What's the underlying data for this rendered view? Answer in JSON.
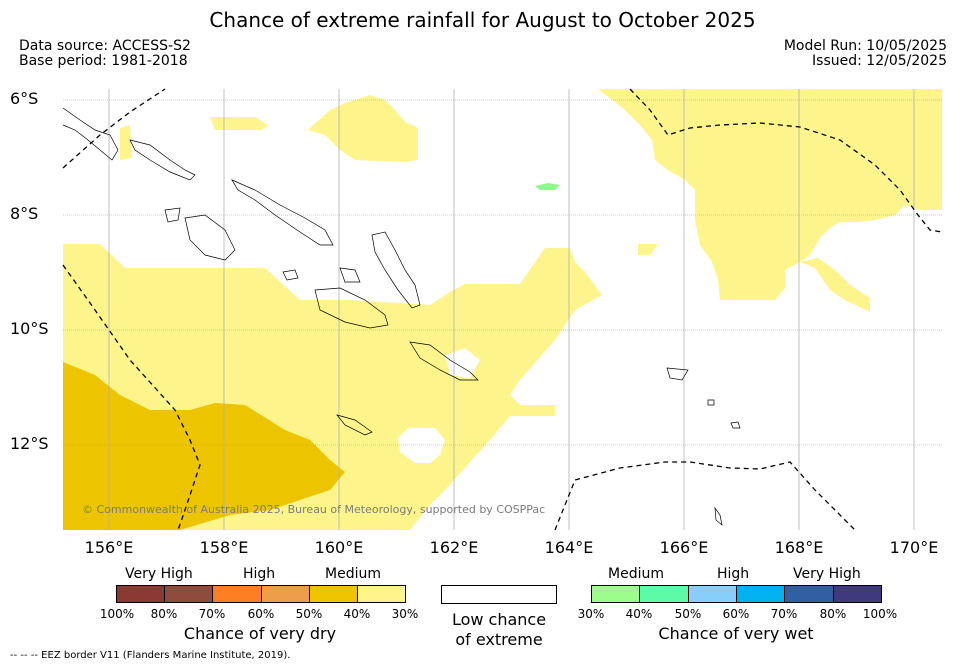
{
  "title": "Chance of extreme rainfall for August to October 2025",
  "meta": {
    "data_source": "Data source: ACCESS-S2",
    "base_period": "Base period: 1981-2018",
    "model_run": "Model Run: 10/05/2025",
    "issued": "Issued: 12/05/2025"
  },
  "map": {
    "lat_labels": [
      "6°S",
      "8°S",
      "10°S",
      "12°S"
    ],
    "lon_labels": [
      "156°E",
      "158°E",
      "160°E",
      "162°E",
      "164°E",
      "166°E",
      "168°E",
      "170°E"
    ],
    "copyright": "© Commonwealth of Australia 2025, Bureau of Meteorology, supported by COSPPac",
    "colors": {
      "dry_medium": "#fdf58b",
      "dry_high": "#edc400",
      "wet_medium": "#8dfc8d",
      "grid": "#9a9a9a"
    }
  },
  "legend": {
    "dry": {
      "heads": [
        "Very High",
        "High",
        "Medium"
      ],
      "ticks": [
        "100%",
        "80%",
        "70%",
        "60%",
        "50%",
        "40%",
        "30%"
      ],
      "colors": [
        "#8b3a33",
        "#8f4b3b",
        "#fd7f23",
        "#ee9d4a",
        "#eec400",
        "#fdf58b"
      ],
      "title": "Chance of very dry"
    },
    "low": {
      "line1": "Low chance",
      "line2": "of extreme"
    },
    "wet": {
      "heads": [
        "Medium",
        "High",
        "Very High"
      ],
      "ticks": [
        "30%",
        "40%",
        "50%",
        "60%",
        "70%",
        "80%",
        "100%"
      ],
      "colors": [
        "#9cfc8c",
        "#5dfba7",
        "#87cefa",
        "#02b1ef",
        "#325fa3",
        "#3f3a7b"
      ],
      "title": "Chance of very wet"
    }
  },
  "footer": "--  --  -- EEZ border V11 (Flanders Marine Institute, 2019)."
}
